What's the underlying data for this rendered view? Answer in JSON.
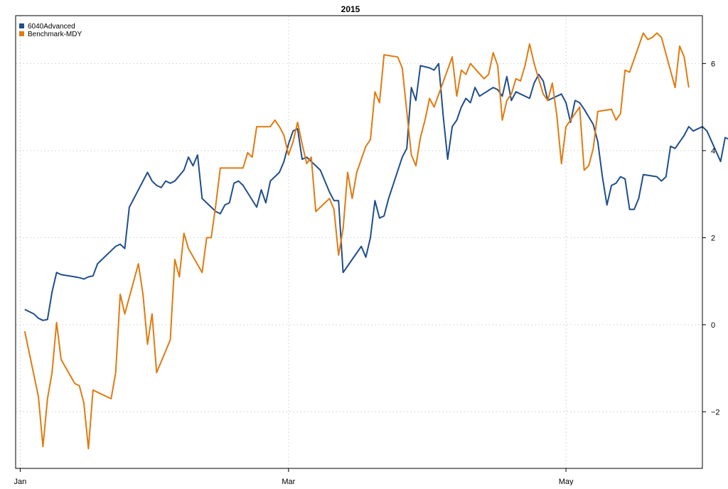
{
  "chart_data": {
    "type": "line",
    "title": "2015",
    "xlabel": "",
    "ylabel": "",
    "ylim": [
      -3.3,
      7.1
    ],
    "y_ticks": [
      -2,
      0,
      2,
      4,
      6
    ],
    "x_range": [
      -1,
      150
    ],
    "x_ticks": [
      {
        "x": 0,
        "label": "Jan"
      },
      {
        "x": 59,
        "label": "Mar"
      },
      {
        "x": 120,
        "label": "May"
      }
    ],
    "grid": true,
    "legend_position": "top-left",
    "series": [
      {
        "name": "6040Advanced",
        "color": "#1f4e8c",
        "points": [
          [
            1,
            0.35
          ],
          [
            3,
            0.25
          ],
          [
            4,
            0.15
          ],
          [
            5,
            0.1
          ],
          [
            6,
            0.12
          ],
          [
            7,
            0.75
          ],
          [
            8,
            1.2
          ],
          [
            9,
            1.15
          ],
          [
            12,
            1.1
          ],
          [
            13,
            1.08
          ],
          [
            14,
            1.05
          ],
          [
            15,
            1.1
          ],
          [
            16,
            1.12
          ],
          [
            17,
            1.4
          ],
          [
            20,
            1.7
          ],
          [
            21,
            1.8
          ],
          [
            22,
            1.85
          ],
          [
            23,
            1.75
          ],
          [
            24,
            2.7
          ],
          [
            25,
            2.9
          ],
          [
            28,
            3.5
          ],
          [
            29,
            3.3
          ],
          [
            30,
            3.2
          ],
          [
            31,
            3.15
          ],
          [
            32,
            3.3
          ],
          [
            33,
            3.25
          ],
          [
            34,
            3.3
          ],
          [
            36,
            3.55
          ],
          [
            37,
            3.85
          ],
          [
            38,
            3.65
          ],
          [
            39,
            3.9
          ],
          [
            40,
            2.9
          ],
          [
            41,
            2.8
          ],
          [
            42,
            2.7
          ],
          [
            43,
            2.6
          ],
          [
            44,
            2.55
          ],
          [
            45,
            2.75
          ],
          [
            46,
            2.8
          ],
          [
            47,
            3.25
          ],
          [
            48,
            3.3
          ],
          [
            49,
            3.2
          ],
          [
            52,
            2.7
          ],
          [
            53,
            3.1
          ],
          [
            54,
            2.8
          ],
          [
            55,
            3.3
          ],
          [
            57,
            3.5
          ],
          [
            58,
            3.75
          ],
          [
            59,
            4.15
          ],
          [
            60,
            4.45
          ],
          [
            61,
            4.5
          ],
          [
            62,
            3.8
          ],
          [
            63,
            3.85
          ],
          [
            64,
            3.75
          ],
          [
            66,
            3.55
          ],
          [
            67,
            3.3
          ],
          [
            68,
            3.05
          ],
          [
            69,
            2.85
          ],
          [
            70,
            2.85
          ],
          [
            71,
            1.2
          ],
          [
            73,
            1.5
          ],
          [
            75,
            1.8
          ],
          [
            76,
            1.55
          ],
          [
            77,
            2.0
          ],
          [
            78,
            2.85
          ],
          [
            79,
            2.45
          ],
          [
            80,
            2.5
          ],
          [
            81,
            2.9
          ],
          [
            84,
            3.85
          ],
          [
            85,
            4.05
          ],
          [
            86,
            5.45
          ],
          [
            87,
            5.15
          ],
          [
            88,
            5.95
          ],
          [
            90,
            5.9
          ],
          [
            91,
            5.85
          ],
          [
            92,
            6.0
          ],
          [
            93,
            4.8
          ],
          [
            94,
            3.8
          ],
          [
            95,
            4.55
          ],
          [
            96,
            4.7
          ],
          [
            97,
            5.0
          ],
          [
            98,
            5.2
          ],
          [
            99,
            5.1
          ],
          [
            100,
            5.45
          ],
          [
            101,
            5.25
          ],
          [
            104,
            5.45
          ],
          [
            105,
            5.4
          ],
          [
            106,
            5.25
          ],
          [
            107,
            5.7
          ],
          [
            108,
            5.15
          ],
          [
            109,
            5.35
          ],
          [
            112,
            5.2
          ],
          [
            113,
            5.55
          ],
          [
            114,
            5.75
          ],
          [
            115,
            5.6
          ],
          [
            116,
            5.15
          ],
          [
            118,
            5.25
          ],
          [
            119,
            5.3
          ],
          [
            120,
            5.1
          ],
          [
            121,
            4.65
          ],
          [
            122,
            5.15
          ],
          [
            123,
            5.1
          ],
          [
            124,
            4.95
          ],
          [
            126,
            4.6
          ],
          [
            127,
            4.2
          ],
          [
            128,
            3.4
          ],
          [
            129,
            2.75
          ],
          [
            130,
            3.2
          ],
          [
            131,
            3.25
          ],
          [
            132,
            3.4
          ],
          [
            133,
            3.35
          ],
          [
            134,
            2.65
          ],
          [
            135,
            2.65
          ],
          [
            136,
            2.9
          ],
          [
            137,
            3.45
          ],
          [
            140,
            3.4
          ],
          [
            141,
            3.3
          ],
          [
            142,
            3.4
          ],
          [
            143,
            4.1
          ],
          [
            144,
            4.05
          ],
          [
            146,
            4.35
          ],
          [
            147,
            4.55
          ],
          [
            148,
            4.45
          ],
          [
            149,
            4.5
          ],
          [
            150,
            4.55
          ],
          [
            151,
            4.45
          ],
          [
            154,
            3.75
          ],
          [
            155,
            4.3
          ],
          [
            156,
            4.25
          ],
          [
            157,
            3.8
          ]
        ]
      },
      {
        "name": "Benchmark-MDY",
        "color": "#e07b10",
        "points": [
          [
            1,
            -0.15
          ],
          [
            4,
            -1.65
          ],
          [
            5,
            -2.8
          ],
          [
            6,
            -1.7
          ],
          [
            7,
            -1.1
          ],
          [
            8,
            0.05
          ],
          [
            9,
            -0.8
          ],
          [
            12,
            -1.35
          ],
          [
            13,
            -1.4
          ],
          [
            14,
            -1.8
          ],
          [
            15,
            -2.85
          ],
          [
            16,
            -1.5
          ],
          [
            20,
            -1.7
          ],
          [
            21,
            -1.1
          ],
          [
            22,
            0.7
          ],
          [
            23,
            0.25
          ],
          [
            26,
            1.4
          ],
          [
            27,
            0.7
          ],
          [
            28,
            -0.45
          ],
          [
            29,
            0.25
          ],
          [
            30,
            -1.1
          ],
          [
            33,
            -0.35
          ],
          [
            34,
            1.5
          ],
          [
            35,
            1.1
          ],
          [
            36,
            2.1
          ],
          [
            37,
            1.75
          ],
          [
            40,
            1.2
          ],
          [
            41,
            2.0
          ],
          [
            42,
            2.0
          ],
          [
            43,
            2.75
          ],
          [
            44,
            3.6
          ],
          [
            49,
            3.6
          ],
          [
            50,
            3.95
          ],
          [
            51,
            3.85
          ],
          [
            52,
            4.55
          ],
          [
            54,
            4.55
          ],
          [
            55,
            4.55
          ],
          [
            56,
            4.7
          ],
          [
            57,
            4.55
          ],
          [
            58,
            4.35
          ],
          [
            59,
            3.9
          ],
          [
            60,
            4.2
          ],
          [
            61,
            4.65
          ],
          [
            62,
            4.15
          ],
          [
            63,
            3.7
          ],
          [
            64,
            3.85
          ],
          [
            65,
            2.6
          ],
          [
            66,
            2.7
          ],
          [
            68,
            2.9
          ],
          [
            69,
            2.65
          ],
          [
            70,
            1.6
          ],
          [
            71,
            2.2
          ],
          [
            72,
            3.5
          ],
          [
            73,
            2.9
          ],
          [
            74,
            3.5
          ],
          [
            76,
            4.1
          ],
          [
            77,
            4.25
          ],
          [
            78,
            5.35
          ],
          [
            79,
            5.1
          ],
          [
            80,
            6.2
          ],
          [
            83,
            6.15
          ],
          [
            84,
            5.9
          ],
          [
            86,
            3.9
          ],
          [
            87,
            3.65
          ],
          [
            88,
            4.3
          ],
          [
            89,
            4.7
          ],
          [
            90,
            5.2
          ],
          [
            91,
            5.0
          ],
          [
            95,
            6.15
          ],
          [
            96,
            5.25
          ],
          [
            97,
            5.85
          ],
          [
            98,
            5.75
          ],
          [
            99,
            6.0
          ],
          [
            102,
            5.65
          ],
          [
            103,
            5.75
          ],
          [
            104,
            6.25
          ],
          [
            105,
            5.95
          ],
          [
            106,
            4.7
          ],
          [
            107,
            5.15
          ],
          [
            108,
            5.3
          ],
          [
            109,
            5.65
          ],
          [
            110,
            5.6
          ],
          [
            111,
            5.95
          ],
          [
            112,
            6.45
          ],
          [
            113,
            6.0
          ],
          [
            114,
            5.65
          ],
          [
            115,
            5.3
          ],
          [
            116,
            5.15
          ],
          [
            117,
            5.55
          ],
          [
            118,
            4.8
          ],
          [
            119,
            3.7
          ],
          [
            120,
            4.55
          ],
          [
            123,
            5.0
          ],
          [
            124,
            3.55
          ],
          [
            125,
            3.65
          ],
          [
            126,
            4.05
          ],
          [
            127,
            4.9
          ],
          [
            130,
            4.95
          ],
          [
            131,
            4.7
          ],
          [
            132,
            4.85
          ],
          [
            133,
            5.85
          ],
          [
            134,
            5.8
          ],
          [
            137,
            6.7
          ],
          [
            138,
            6.55
          ],
          [
            139,
            6.6
          ],
          [
            140,
            6.7
          ],
          [
            141,
            6.6
          ],
          [
            144,
            5.45
          ],
          [
            145,
            6.4
          ],
          [
            146,
            6.15
          ],
          [
            147,
            5.45
          ]
        ]
      }
    ]
  }
}
